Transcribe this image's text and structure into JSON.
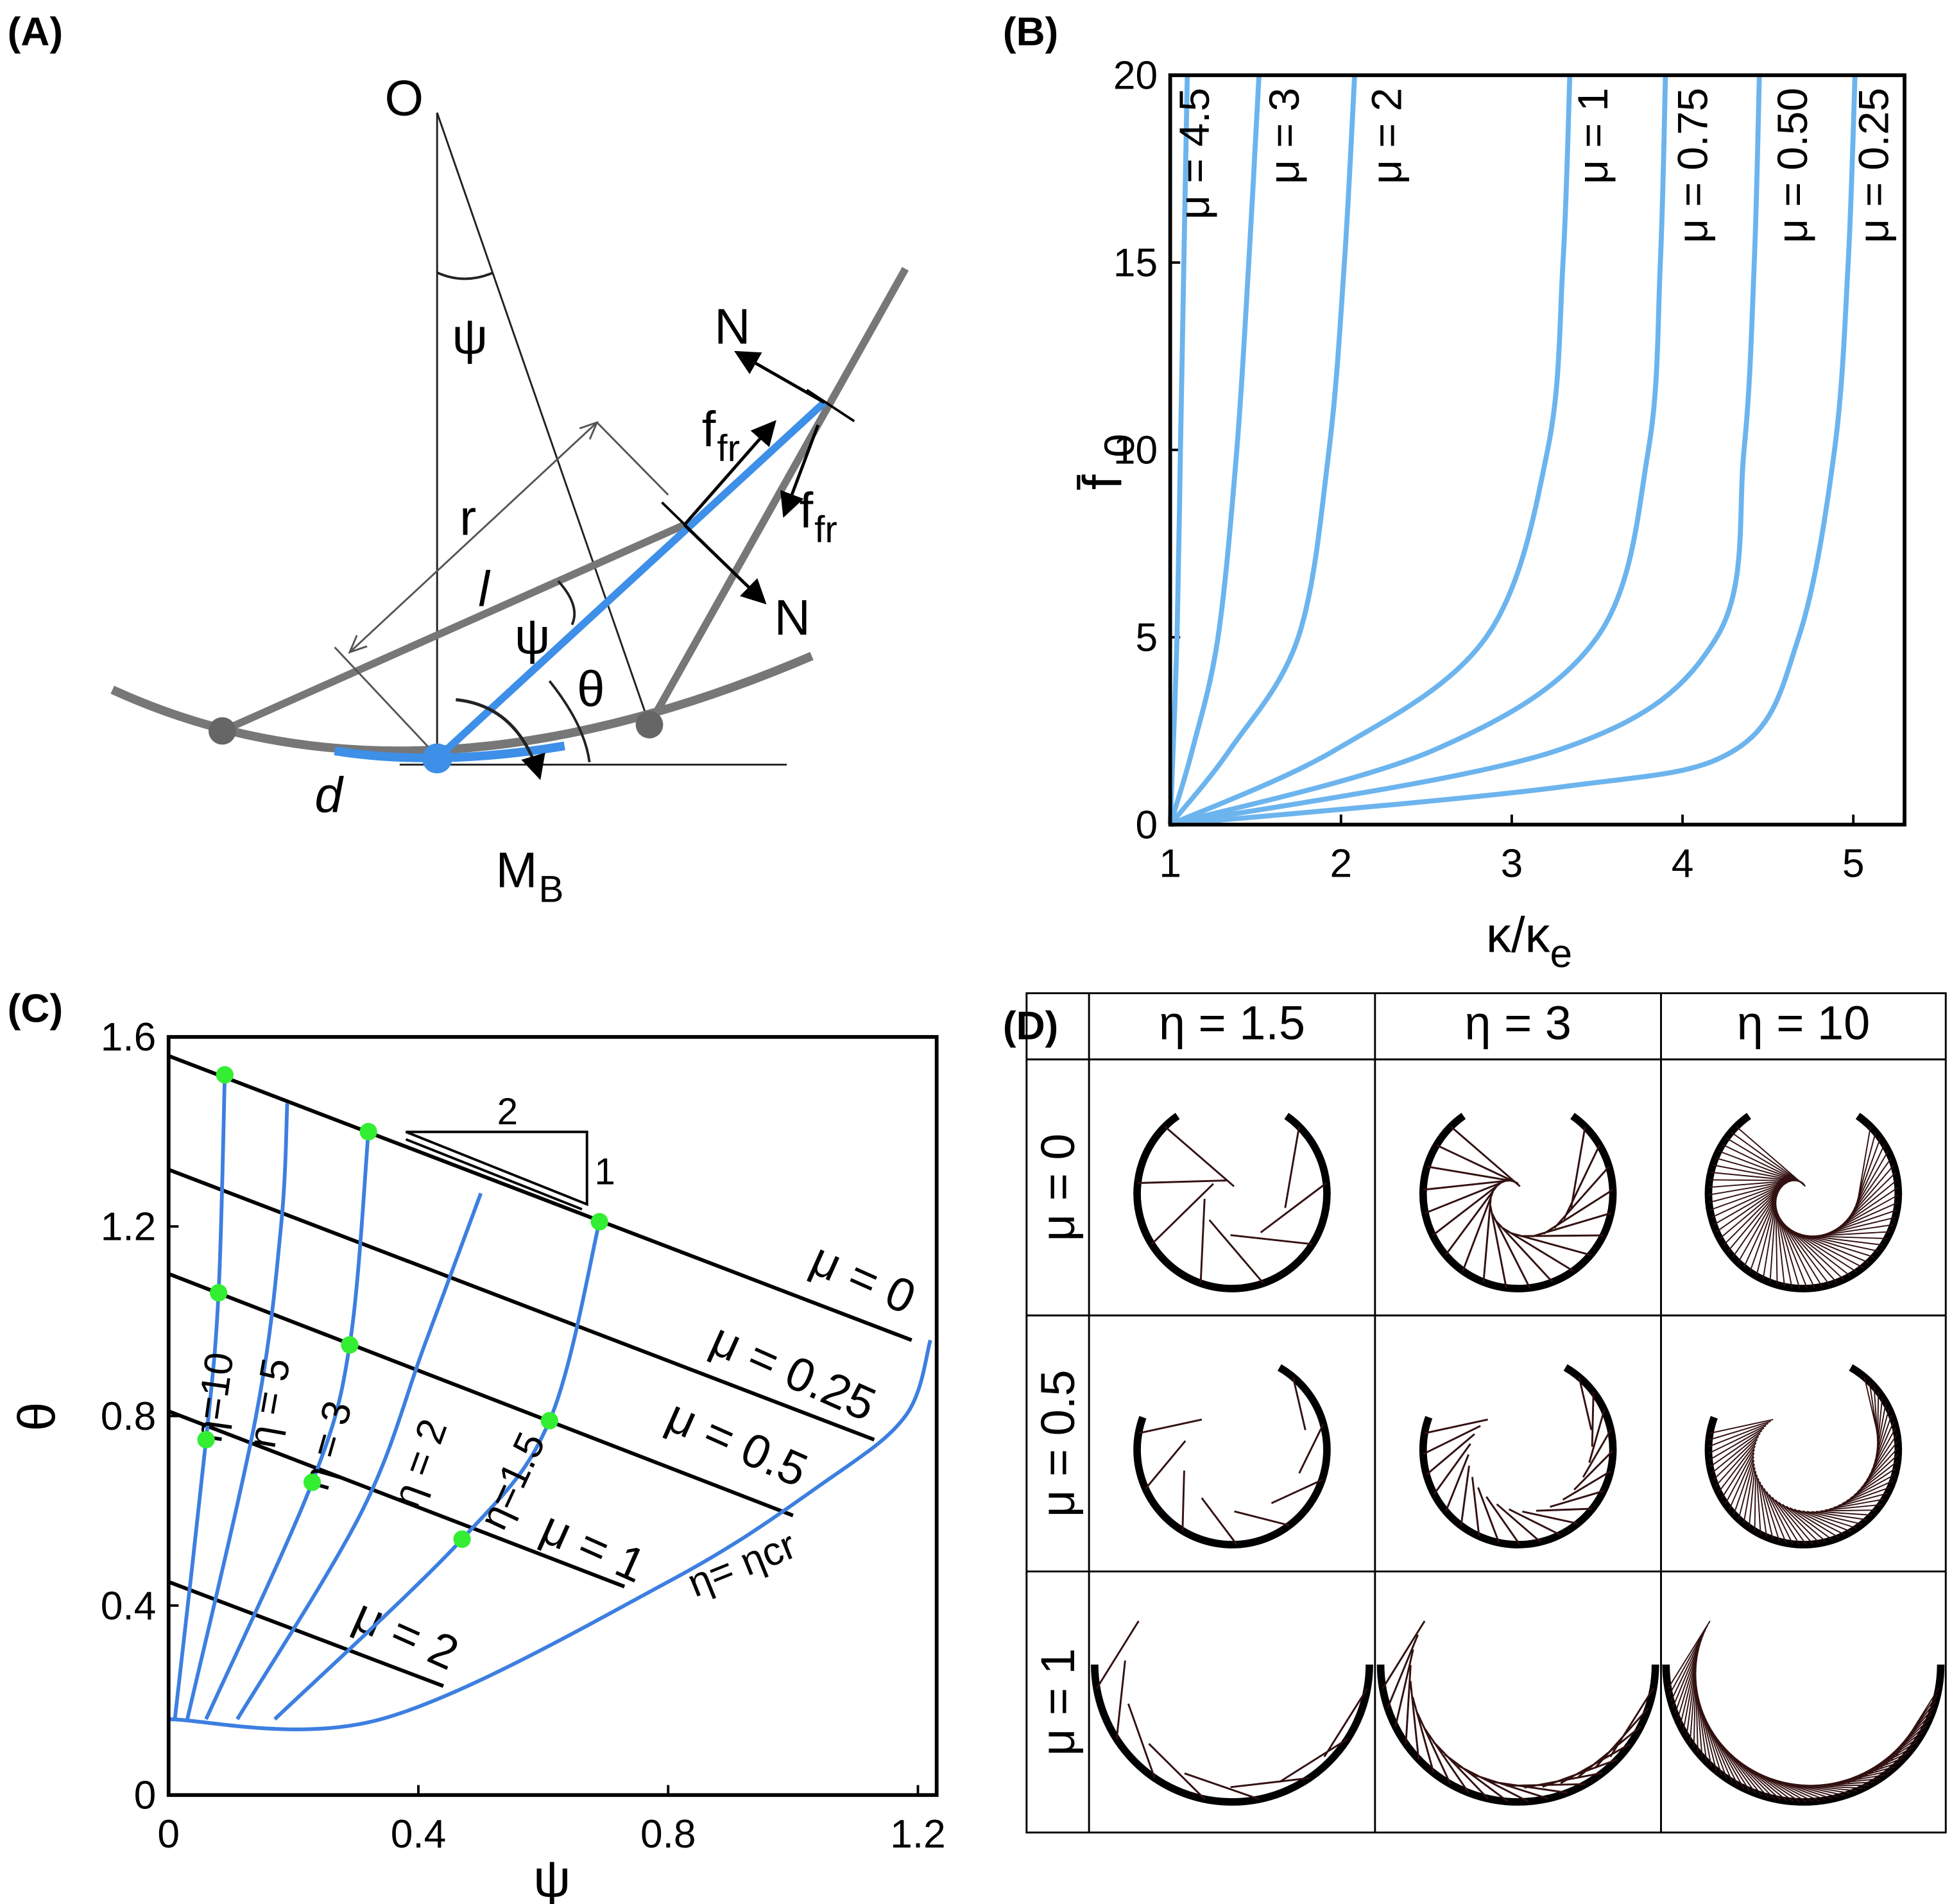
{
  "panel_labels": [
    "(A)",
    "(B)",
    "(C)",
    "(D)"
  ],
  "diagram": {
    "labels": [
      {
        "text": "O"
      },
      {
        "text": "ψ"
      },
      {
        "text": "N"
      },
      {
        "text": "f",
        "sub": "fr"
      },
      {
        "text": "r"
      },
      {
        "text": "l"
      },
      {
        "text": "ψ"
      },
      {
        "text": "f",
        "sub": "fr"
      },
      {
        "text": "N"
      },
      {
        "text": "θ"
      },
      {
        "text": "d"
      },
      {
        "text": "M",
        "sub": "B"
      }
    ]
  },
  "chart_data": [
    {
      "type": "line",
      "xlabel": "κ/κ",
      "xlabel_sub": "e",
      "ylabel": "f̄",
      "ylabel_sub": "0",
      "xlim": [
        1,
        5.3
      ],
      "ylim": [
        0,
        20
      ],
      "xticks": [
        1,
        2,
        3,
        4,
        5
      ],
      "yticks": [
        0,
        5,
        10,
        15,
        20
      ],
      "series": [
        {
          "name": "μ = 4.5",
          "color": "#6cb4ee",
          "x": [
            1,
            1.04,
            1.06,
            1.08,
            1.1
          ],
          "values": [
            0,
            5,
            10,
            15,
            20
          ]
        },
        {
          "name": "μ = 3",
          "color": "#6cb4ee",
          "x": [
            1,
            1.13,
            1.28,
            1.39,
            1.46,
            1.52
          ],
          "values": [
            0,
            2,
            5,
            10,
            15,
            20
          ]
        },
        {
          "name": "μ = 2",
          "color": "#6cb4ee",
          "x": [
            1,
            1.35,
            1.75,
            1.93,
            2.02,
            2.08
          ],
          "values": [
            0,
            2,
            5,
            10,
            15,
            20
          ]
        },
        {
          "name": "μ = 1",
          "color": "#6cb4ee",
          "x": [
            1,
            1.97,
            2.85,
            3.21,
            3.3,
            3.34
          ],
          "values": [
            0,
            2,
            5,
            10,
            15,
            20
          ]
        },
        {
          "name": "μ = 0.75",
          "color": "#6cb4ee",
          "x": [
            1,
            2.55,
            3.5,
            3.8,
            3.87,
            3.9
          ],
          "values": [
            0,
            2,
            5,
            10,
            15,
            20
          ]
        },
        {
          "name": "μ = 0.50",
          "color": "#6cb4ee",
          "x": [
            1,
            3.28,
            4.2,
            4.36,
            4.42,
            4.45
          ],
          "values": [
            0,
            2,
            5,
            10,
            15,
            20
          ]
        },
        {
          "name": "μ = 0.25",
          "color": "#6cb4ee",
          "x": [
            1,
            3.28,
            4.31,
            4.68,
            4.89,
            4.97,
            5.01
          ],
          "values": [
            0,
            1,
            2,
            5,
            10,
            15,
            20
          ]
        }
      ]
    },
    {
      "type": "line",
      "xlabel": "ψ",
      "ylabel": "θ",
      "xlim": [
        0,
        1.23
      ],
      "ylim": [
        0,
        1.6
      ],
      "xticks": [
        0,
        0.4,
        0.8,
        1.2
      ],
      "yticks": [
        0,
        0.4,
        0.8,
        1.2,
        1.6
      ],
      "annotations": [
        "2",
        "1"
      ],
      "series": [
        {
          "name": "μ = 0",
          "color": "#000000",
          "x": [
            0,
            1.19
          ],
          "values": [
            1.56,
            0.96
          ]
        },
        {
          "name": "μ = 0.25",
          "color": "#000000",
          "x": [
            0,
            1.13
          ],
          "values": [
            1.32,
            0.75
          ]
        },
        {
          "name": "μ = 0.5",
          "color": "#000000",
          "x": [
            0,
            1.0
          ],
          "values": [
            1.1,
            0.59
          ]
        },
        {
          "name": "μ = 1",
          "color": "#000000",
          "x": [
            0,
            0.73
          ],
          "values": [
            0.81,
            0.44
          ]
        },
        {
          "name": "μ = 2",
          "color": "#000000",
          "x": [
            0,
            0.44
          ],
          "values": [
            0.45,
            0.23
          ]
        },
        {
          "name": "η=10",
          "color": "#3d7fe0",
          "x": [
            0.01,
            0.06,
            0.08,
            0.09
          ],
          "values": [
            0.16,
            0.75,
            1.06,
            1.52
          ]
        },
        {
          "name": "η = 5",
          "color": "#3d7fe0",
          "x": [
            0.03,
            0.14,
            0.18,
            0.19
          ],
          "values": [
            0.16,
            0.8,
            1.2,
            1.46
          ]
        },
        {
          "name": "η = 3",
          "color": "#3d7fe0",
          "x": [
            0.06,
            0.23,
            0.29,
            0.32
          ],
          "values": [
            0.16,
            0.66,
            0.95,
            1.4
          ]
        },
        {
          "name": "η = 2",
          "color": "#3d7fe0",
          "x": [
            0.11,
            0.31,
            0.41,
            0.5
          ],
          "values": [
            0.16,
            0.6,
            0.95,
            1.27
          ]
        },
        {
          "name": "η=1.5",
          "color": "#3d7fe0",
          "x": [
            0.17,
            0.47,
            0.61,
            0.69
          ],
          "values": [
            0.16,
            0.54,
            0.79,
            1.21
          ]
        },
        {
          "name": "η= ηcr",
          "color": "#3d7fe0",
          "x": [
            0,
            0.34,
            0.8,
            1.05,
            1.18,
            1.22
          ],
          "values": [
            0.16,
            0.16,
            0.45,
            0.66,
            0.8,
            0.96
          ]
        },
        {
          "type": "scatter",
          "color": "#33ee33",
          "x": [
            0.09,
            0.32,
            0.69,
            0.08,
            0.29,
            0.61,
            0.06,
            0.23,
            0.47
          ],
          "values": [
            1.52,
            1.4,
            1.21,
            1.06,
            0.95,
            0.79,
            0.75,
            0.66,
            0.54
          ]
        }
      ]
    }
  ],
  "table": {
    "columns": [
      "η = 1.5",
      "η = 3",
      "η = 10"
    ],
    "rows": [
      "μ = 0",
      "μ = 0.5",
      "μ = 1"
    ]
  }
}
